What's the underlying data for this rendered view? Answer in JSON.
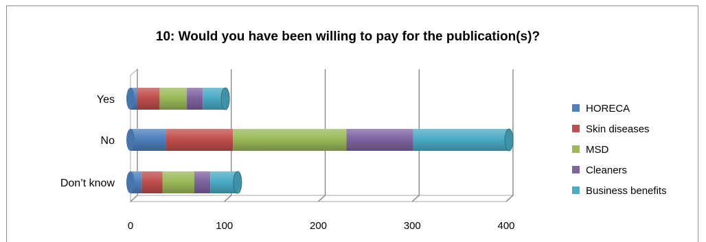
{
  "chart_data": {
    "type": "bar",
    "orientation": "horizontal",
    "stacked": true,
    "three_d": true,
    "title": "10: Would you have been willing to pay for the publication(s)?",
    "categories": [
      "Yes",
      "No",
      "Don’t know"
    ],
    "series": [
      {
        "name": "HORECA",
        "color": "#4f81bd",
        "values": [
          7,
          38,
          12
        ]
      },
      {
        "name": "Skin diseases",
        "color": "#c0504d",
        "values": [
          24,
          71,
          22
        ]
      },
      {
        "name": "MSD",
        "color": "#9bbb59",
        "values": [
          29,
          121,
          34
        ]
      },
      {
        "name": "Cleaners",
        "color": "#8064a2",
        "values": [
          17,
          71,
          17
        ]
      },
      {
        "name": "Business benefits",
        "color": "#4bacc6",
        "values": [
          24,
          102,
          29
        ]
      }
    ],
    "xlim": [
      0,
      400
    ],
    "xticks": [
      "0",
      "100",
      "200",
      "300",
      "400"
    ],
    "grid": true,
    "legend_position": "right"
  }
}
